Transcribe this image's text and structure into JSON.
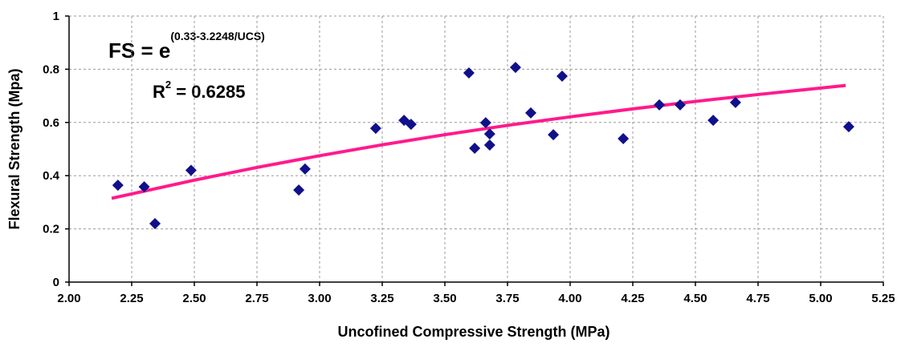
{
  "chart_data": {
    "type": "scatter",
    "x_label": "Uncofined Compressive Strength (MPa)",
    "y_label": "Flexural Strength (Mpa)",
    "annotations": {
      "equation_base": "FS = e",
      "equation_exponent": "(0.33-3.2248/UCS)",
      "r2_base": "R",
      "r2_exponent": "2",
      "r2_value": " = 0.6285"
    },
    "xlim": [
      2.0,
      5.25
    ],
    "ylim": [
      0,
      1
    ],
    "xticks": [
      {
        "value": 2.0,
        "label": "2.00"
      },
      {
        "value": 2.25,
        "label": "2.25"
      },
      {
        "value": 2.5,
        "label": "2.50"
      },
      {
        "value": 2.75,
        "label": "2.75"
      },
      {
        "value": 3.0,
        "label": "3.00"
      },
      {
        "value": 3.25,
        "label": "3.25"
      },
      {
        "value": 3.5,
        "label": "3.50"
      },
      {
        "value": 3.75,
        "label": "3.75"
      },
      {
        "value": 4.0,
        "label": "4.00"
      },
      {
        "value": 4.25,
        "label": "4.25"
      },
      {
        "value": 4.5,
        "label": "4.50"
      },
      {
        "value": 4.75,
        "label": "4.75"
      },
      {
        "value": 5.0,
        "label": "5.00"
      },
      {
        "value": 5.25,
        "label": "5.25"
      }
    ],
    "yticks": [
      0,
      0.2,
      0.4,
      0.6,
      0.8,
      1
    ],
    "grid": true,
    "series": [
      {
        "color": "#10108a",
        "x": [
          2.195,
          2.3,
          2.343,
          2.487,
          2.917,
          2.942,
          3.224,
          3.337,
          3.365,
          3.596,
          3.619,
          3.663,
          3.679,
          3.679,
          3.782,
          3.843,
          3.933,
          3.968,
          4.212,
          4.356,
          4.439,
          4.571,
          4.66,
          5.112
        ],
        "values": [
          0.364,
          0.358,
          0.22,
          0.42,
          0.346,
          0.425,
          0.578,
          0.608,
          0.593,
          0.786,
          0.503,
          0.599,
          0.557,
          0.515,
          0.807,
          0.636,
          0.554,
          0.774,
          0.539,
          0.666,
          0.666,
          0.608,
          0.675,
          0.584
        ]
      },
      {
        "type": "line",
        "color": "#ff1a8c",
        "x": [
          2.17,
          2.5,
          2.75,
          3.0,
          3.25,
          3.5,
          3.75,
          4.0,
          4.25,
          4.5,
          4.75,
          5.1
        ],
        "values": [
          0.315,
          0.383,
          0.431,
          0.475,
          0.516,
          0.554,
          0.589,
          0.621,
          0.651,
          0.679,
          0.705,
          0.739
        ]
      }
    ]
  }
}
